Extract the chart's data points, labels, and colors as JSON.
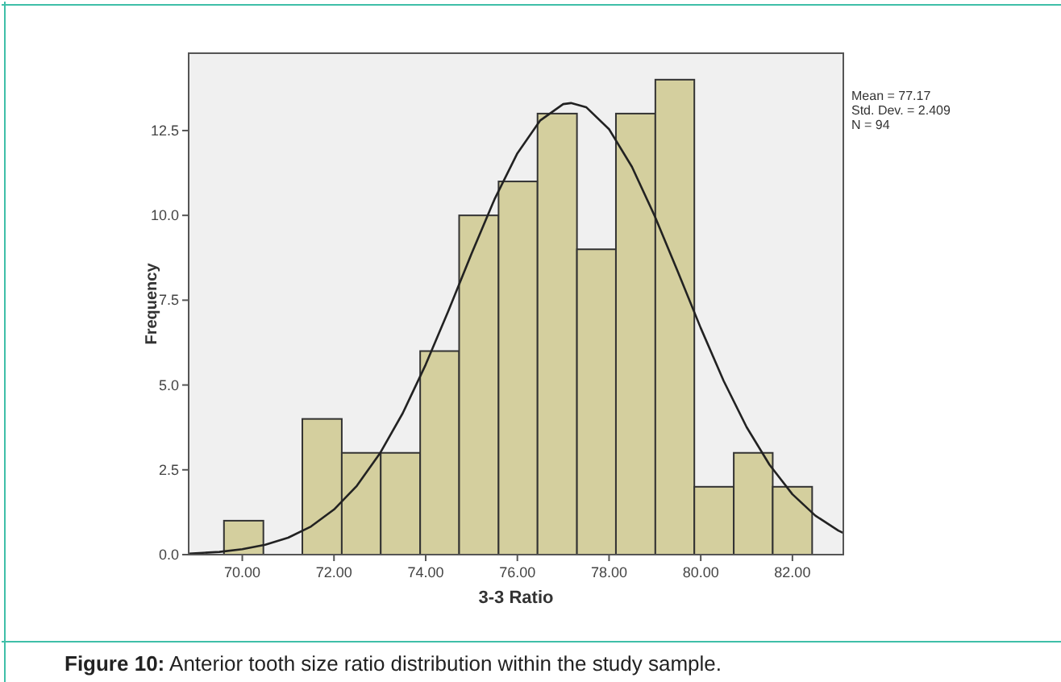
{
  "chart_data": {
    "type": "histogram",
    "xlabel": "3-3 Ratio",
    "ylabel": "Frequency",
    "bins": [
      69.6,
      70.46,
      71.31,
      72.17,
      73.02,
      73.88,
      74.73,
      75.59,
      76.44,
      77.3,
      78.15,
      79.01,
      79.86,
      80.72,
      81.57,
      82.43
    ],
    "values": [
      1,
      0,
      4,
      3,
      3,
      6,
      10,
      11,
      13,
      9,
      13,
      14,
      2,
      3,
      2
    ],
    "color": "#d4cf9e",
    "series": [
      {
        "type": "line",
        "color": "#222222",
        "marker": "none",
        "x": [
          68.83,
          69.5,
          70,
          70.5,
          71,
          71.5,
          72,
          72.5,
          73,
          73.5,
          74,
          74.5,
          75,
          75.5,
          76,
          76.5,
          77,
          77.17,
          77.5,
          78,
          78.5,
          79,
          79.5,
          80,
          80.5,
          81,
          81.5,
          82,
          82.5,
          83,
          83.11
        ],
        "values": [
          0.03,
          0.08,
          0.16,
          0.29,
          0.5,
          0.83,
          1.33,
          2.03,
          2.98,
          4.17,
          5.6,
          7.2,
          8.87,
          10.47,
          11.83,
          12.8,
          13.28,
          13.31,
          13.19,
          12.54,
          11.43,
          9.97,
          8.34,
          6.68,
          5.12,
          3.76,
          2.65,
          1.78,
          1.15,
          0.71,
          0.64
        ]
      }
    ],
    "xlim": [
      68.83,
      83.11
    ],
    "xticks": [
      {
        "value": 70,
        "label": "70.00"
      },
      {
        "value": 72,
        "label": "72.00"
      },
      {
        "value": 74,
        "label": "74.00"
      },
      {
        "value": 76,
        "label": "76.00"
      },
      {
        "value": 78,
        "label": "78.00"
      },
      {
        "value": 80,
        "label": "80.00"
      },
      {
        "value": 82,
        "label": "82.00"
      }
    ],
    "ylim": [
      0,
      14.78
    ],
    "yticks": [
      {
        "value": 0,
        "label": "0.0"
      },
      2.5,
      {
        "value": 5,
        "label": "5.0"
      },
      7.5,
      {
        "value": 10,
        "label": "10.0"
      },
      12.5
    ],
    "grid": false,
    "annotations": [
      "Mean = 77.17",
      "Std. Dev. = 2.409",
      "N = 94",
      "Figure 10: Anterior tooth size ratio distribution within the study sample."
    ]
  }
}
